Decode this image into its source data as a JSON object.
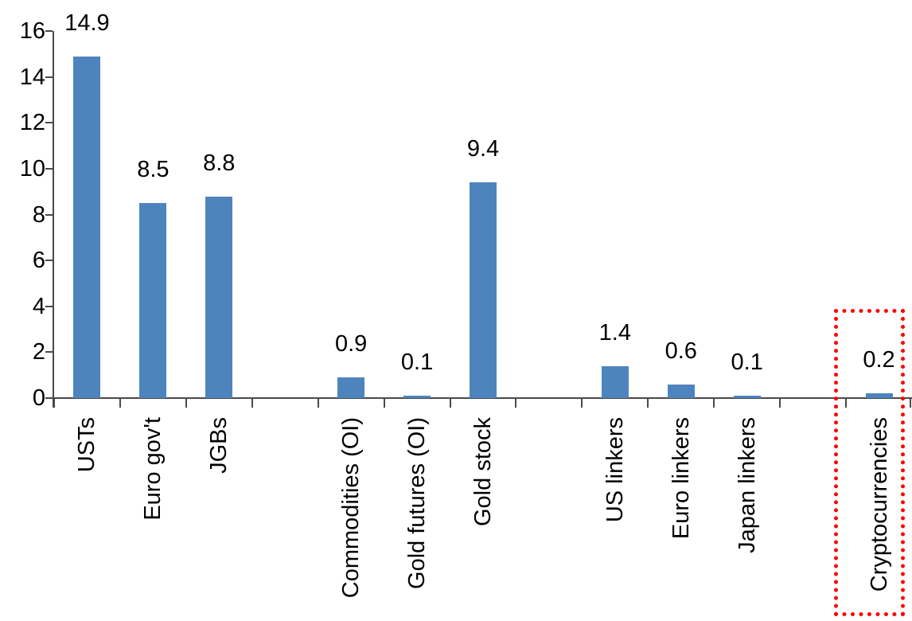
{
  "chart_data": {
    "type": "bar",
    "title": "",
    "xlabel": "",
    "ylabel": "",
    "categories": [
      "USTs",
      "Euro gov't",
      "JGBs",
      "",
      "Commodities (OI)",
      "Gold futures (OI)",
      "Gold stock",
      "",
      "US linkers",
      "Euro linkers",
      "Japan linkers",
      "",
      "Cryptocurrencies"
    ],
    "values": [
      14.9,
      8.5,
      8.8,
      null,
      0.9,
      0.1,
      9.4,
      null,
      1.4,
      0.6,
      0.1,
      null,
      0.2
    ],
    "value_labels": [
      "14.9",
      "8.5",
      "8.8",
      null,
      "0.9",
      "0.1",
      "9.4",
      null,
      "1.4",
      "0.6",
      "0.1",
      null,
      "0.2"
    ],
    "yticks": [
      0,
      2,
      4,
      6,
      8,
      10,
      12,
      14,
      16
    ],
    "ylim": [
      0,
      16
    ],
    "grid": "off",
    "legend": "none",
    "bar_color": "#4e84bd",
    "axis_color": "#4a4a4a",
    "text_color": "#000000",
    "highlight": {
      "category": "Cryptocurrencies",
      "style": "red-dotted-rectangle",
      "color": "#ff0000"
    }
  }
}
